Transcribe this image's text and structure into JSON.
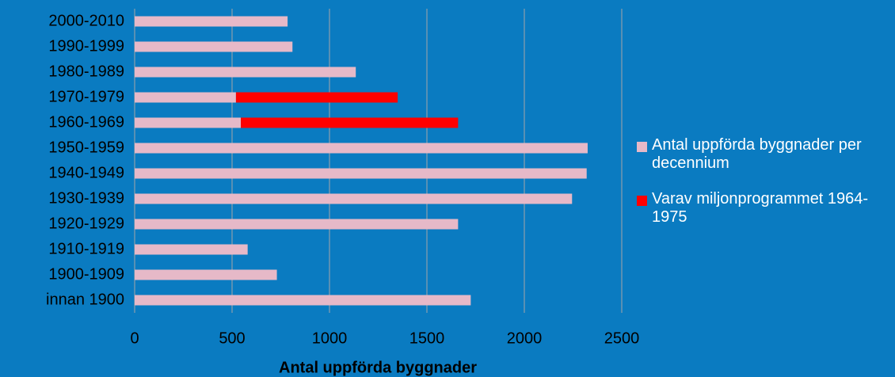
{
  "chart_data": {
    "type": "stacked-bar-horizontal",
    "x_label": "Antal uppförda byggnader",
    "categories": [
      "2000-2010",
      "1990-1999",
      "1980-1989",
      "1970-1979",
      "1960-1969",
      "1950-1959",
      "1940-1949",
      "1930-1939",
      "1920-1929",
      "1910-1919",
      "1900-1909",
      "innan 1900"
    ],
    "series": [
      {
        "name": "Antal uppförda byggnader per decennium",
        "color": "#e6b9c8",
        "values": [
          785,
          810,
          1135,
          520,
          545,
          2325,
          2320,
          2245,
          1660,
          580,
          730,
          1725
        ]
      },
      {
        "name": "Varav miljonprogrammet 1964-1975",
        "color": "#ff0000",
        "values": [
          null,
          null,
          null,
          830,
          1115,
          null,
          null,
          null,
          null,
          null,
          null,
          null
        ]
      }
    ],
    "xlim": [
      0,
      2500
    ],
    "xticks": [
      0,
      500,
      1000,
      1500,
      2000,
      2500
    ],
    "grid": true
  }
}
